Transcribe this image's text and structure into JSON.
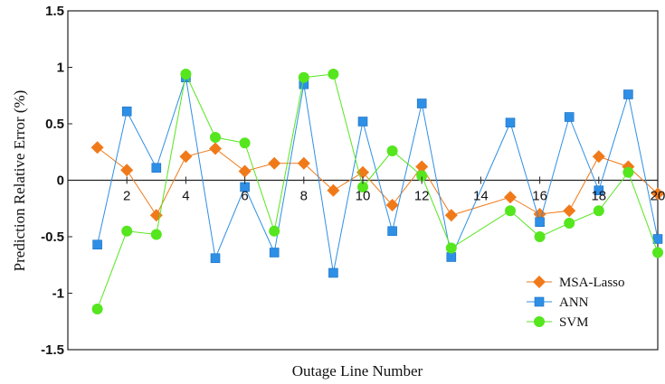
{
  "chart_data": {
    "type": "line",
    "xlabel": "Outage Line Number",
    "ylabel": "Prediction Relative Error (%)",
    "xlim": [
      0,
      20
    ],
    "ylim": [
      -1.5,
      1.5
    ],
    "x_ticks": [
      2,
      4,
      6,
      8,
      10,
      12,
      14,
      16,
      18,
      20
    ],
    "x_tick_labels": [
      "2",
      "4",
      "6",
      "8",
      "10",
      "12",
      "14",
      "16",
      "18",
      "20"
    ],
    "y_ticks": [
      -1.5,
      -1,
      -0.5,
      0,
      0.5,
      1,
      1.5
    ],
    "y_tick_labels": [
      "-1.5",
      "-1",
      "-0.5",
      "0",
      "0.5",
      "1",
      "1.5"
    ],
    "grid": false,
    "legend_position": "bottom-right",
    "x": [
      1,
      2,
      3,
      4,
      5,
      6,
      7,
      8,
      9,
      10,
      11,
      12,
      13,
      15,
      16,
      17,
      18,
      19,
      20
    ],
    "series": [
      {
        "name": "MSA-Lasso",
        "color": "#f07a1a",
        "marker": "diamond",
        "values": [
          0.29,
          0.09,
          -0.31,
          0.21,
          0.28,
          0.08,
          0.15,
          0.15,
          -0.09,
          0.07,
          -0.22,
          0.12,
          -0.31,
          -0.15,
          -0.3,
          -0.27,
          0.21,
          0.12,
          -0.12
        ]
      },
      {
        "name": "ANN",
        "color": "#2e8fe6",
        "marker": "square",
        "values": [
          -0.57,
          0.61,
          0.11,
          0.91,
          -0.69,
          -0.06,
          -0.64,
          0.85,
          -0.82,
          0.52,
          -0.45,
          0.68,
          -0.68,
          0.51,
          -0.37,
          0.56,
          -0.09,
          0.76,
          -0.52
        ]
      },
      {
        "name": "SVM",
        "color": "#55e61e",
        "marker": "circle",
        "values": [
          -1.14,
          -0.45,
          -0.48,
          0.94,
          0.38,
          0.33,
          -0.45,
          0.91,
          0.94,
          -0.06,
          0.26,
          0.04,
          -0.6,
          -0.27,
          -0.5,
          -0.38,
          -0.27,
          0.07,
          -0.64
        ]
      }
    ]
  }
}
